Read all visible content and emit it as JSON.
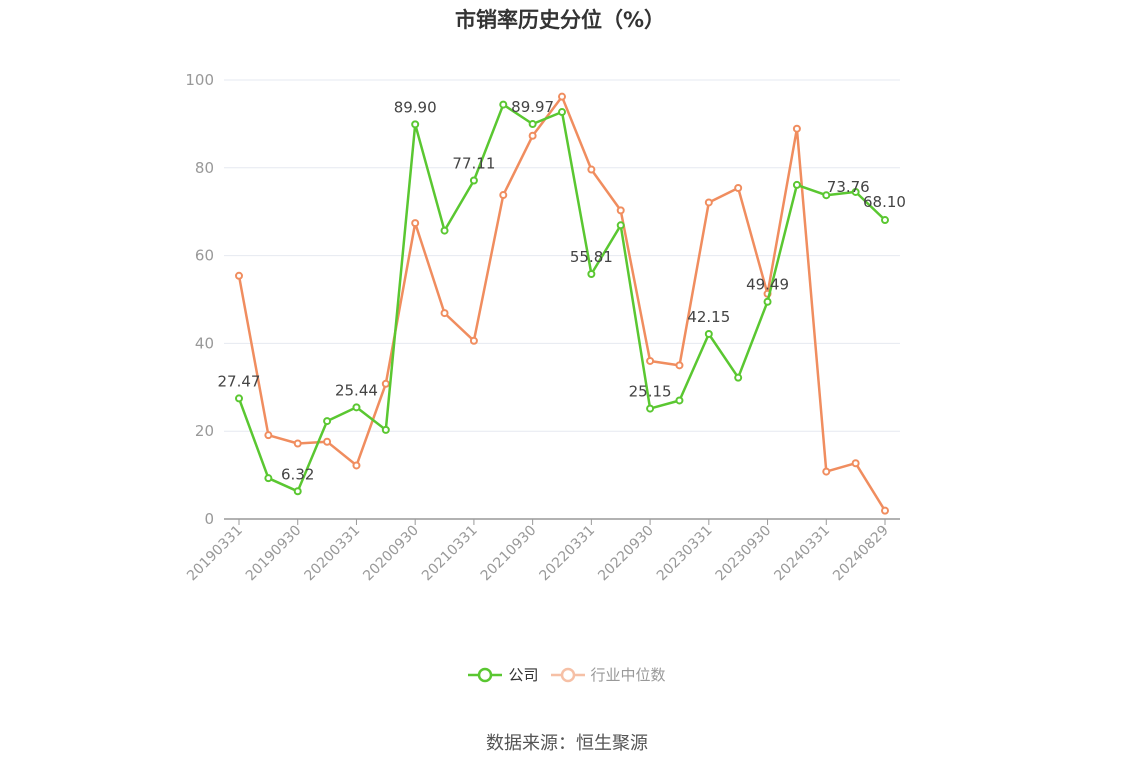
{
  "title": "市销率历史分位（%）",
  "source": "数据来源：恒生聚源",
  "colors": {
    "company": "#5ac731",
    "industry": "#f08d5f",
    "grid": "#e6e9f0",
    "axis": "#999999"
  },
  "chart_data": {
    "type": "line",
    "title": "市销率历史分位（%）",
    "ylim": [
      0,
      100
    ],
    "yticks": [
      0,
      20,
      40,
      60,
      80,
      100
    ],
    "grid": true,
    "legend_position": "bottom",
    "x_tick_labels": [
      "20190331",
      "20190930",
      "20200331",
      "20200930",
      "20210331",
      "20210930",
      "20220331",
      "20220930",
      "20230331",
      "20230930",
      "20240331",
      "20240829"
    ],
    "x": [
      "20190331",
      "20190630",
      "20190930",
      "20191231",
      "20200331",
      "20200630",
      "20200930",
      "20201231",
      "20210331",
      "20210630",
      "20210930",
      "20211231",
      "20220331",
      "20220630",
      "20220930",
      "20221231",
      "20230331",
      "20230630",
      "20230930",
      "20231231",
      "20240331",
      "20240630",
      "20240829"
    ],
    "series": [
      {
        "name": "公司",
        "values": [
          27.47,
          9.3,
          6.32,
          22.3,
          25.44,
          20.3,
          89.9,
          65.7,
          77.11,
          94.4,
          89.97,
          92.7,
          55.81,
          66.9,
          25.15,
          27.0,
          42.15,
          32.2,
          49.49,
          76.1,
          73.76,
          74.5,
          68.1
        ],
        "labels": {
          "0": "27.47",
          "2": "6.32",
          "4": "25.44",
          "6": "89.90",
          "8": "77.11",
          "10": "89.97",
          "12": "55.81",
          "14": "25.15",
          "16": "42.15",
          "18": "49.49",
          "20": "73.76",
          "22": "68.10"
        }
      },
      {
        "name": "行业中位数",
        "values": [
          55.4,
          19.1,
          17.2,
          17.6,
          12.2,
          30.8,
          67.4,
          46.9,
          40.6,
          73.8,
          87.3,
          96.2,
          79.6,
          70.3,
          36.0,
          35.0,
          72.1,
          75.4,
          51.3,
          88.9,
          10.8,
          12.7,
          1.9
        ]
      }
    ]
  },
  "legend": [
    {
      "label": "公司",
      "active": true
    },
    {
      "label": "行业中位数",
      "active": false
    }
  ]
}
